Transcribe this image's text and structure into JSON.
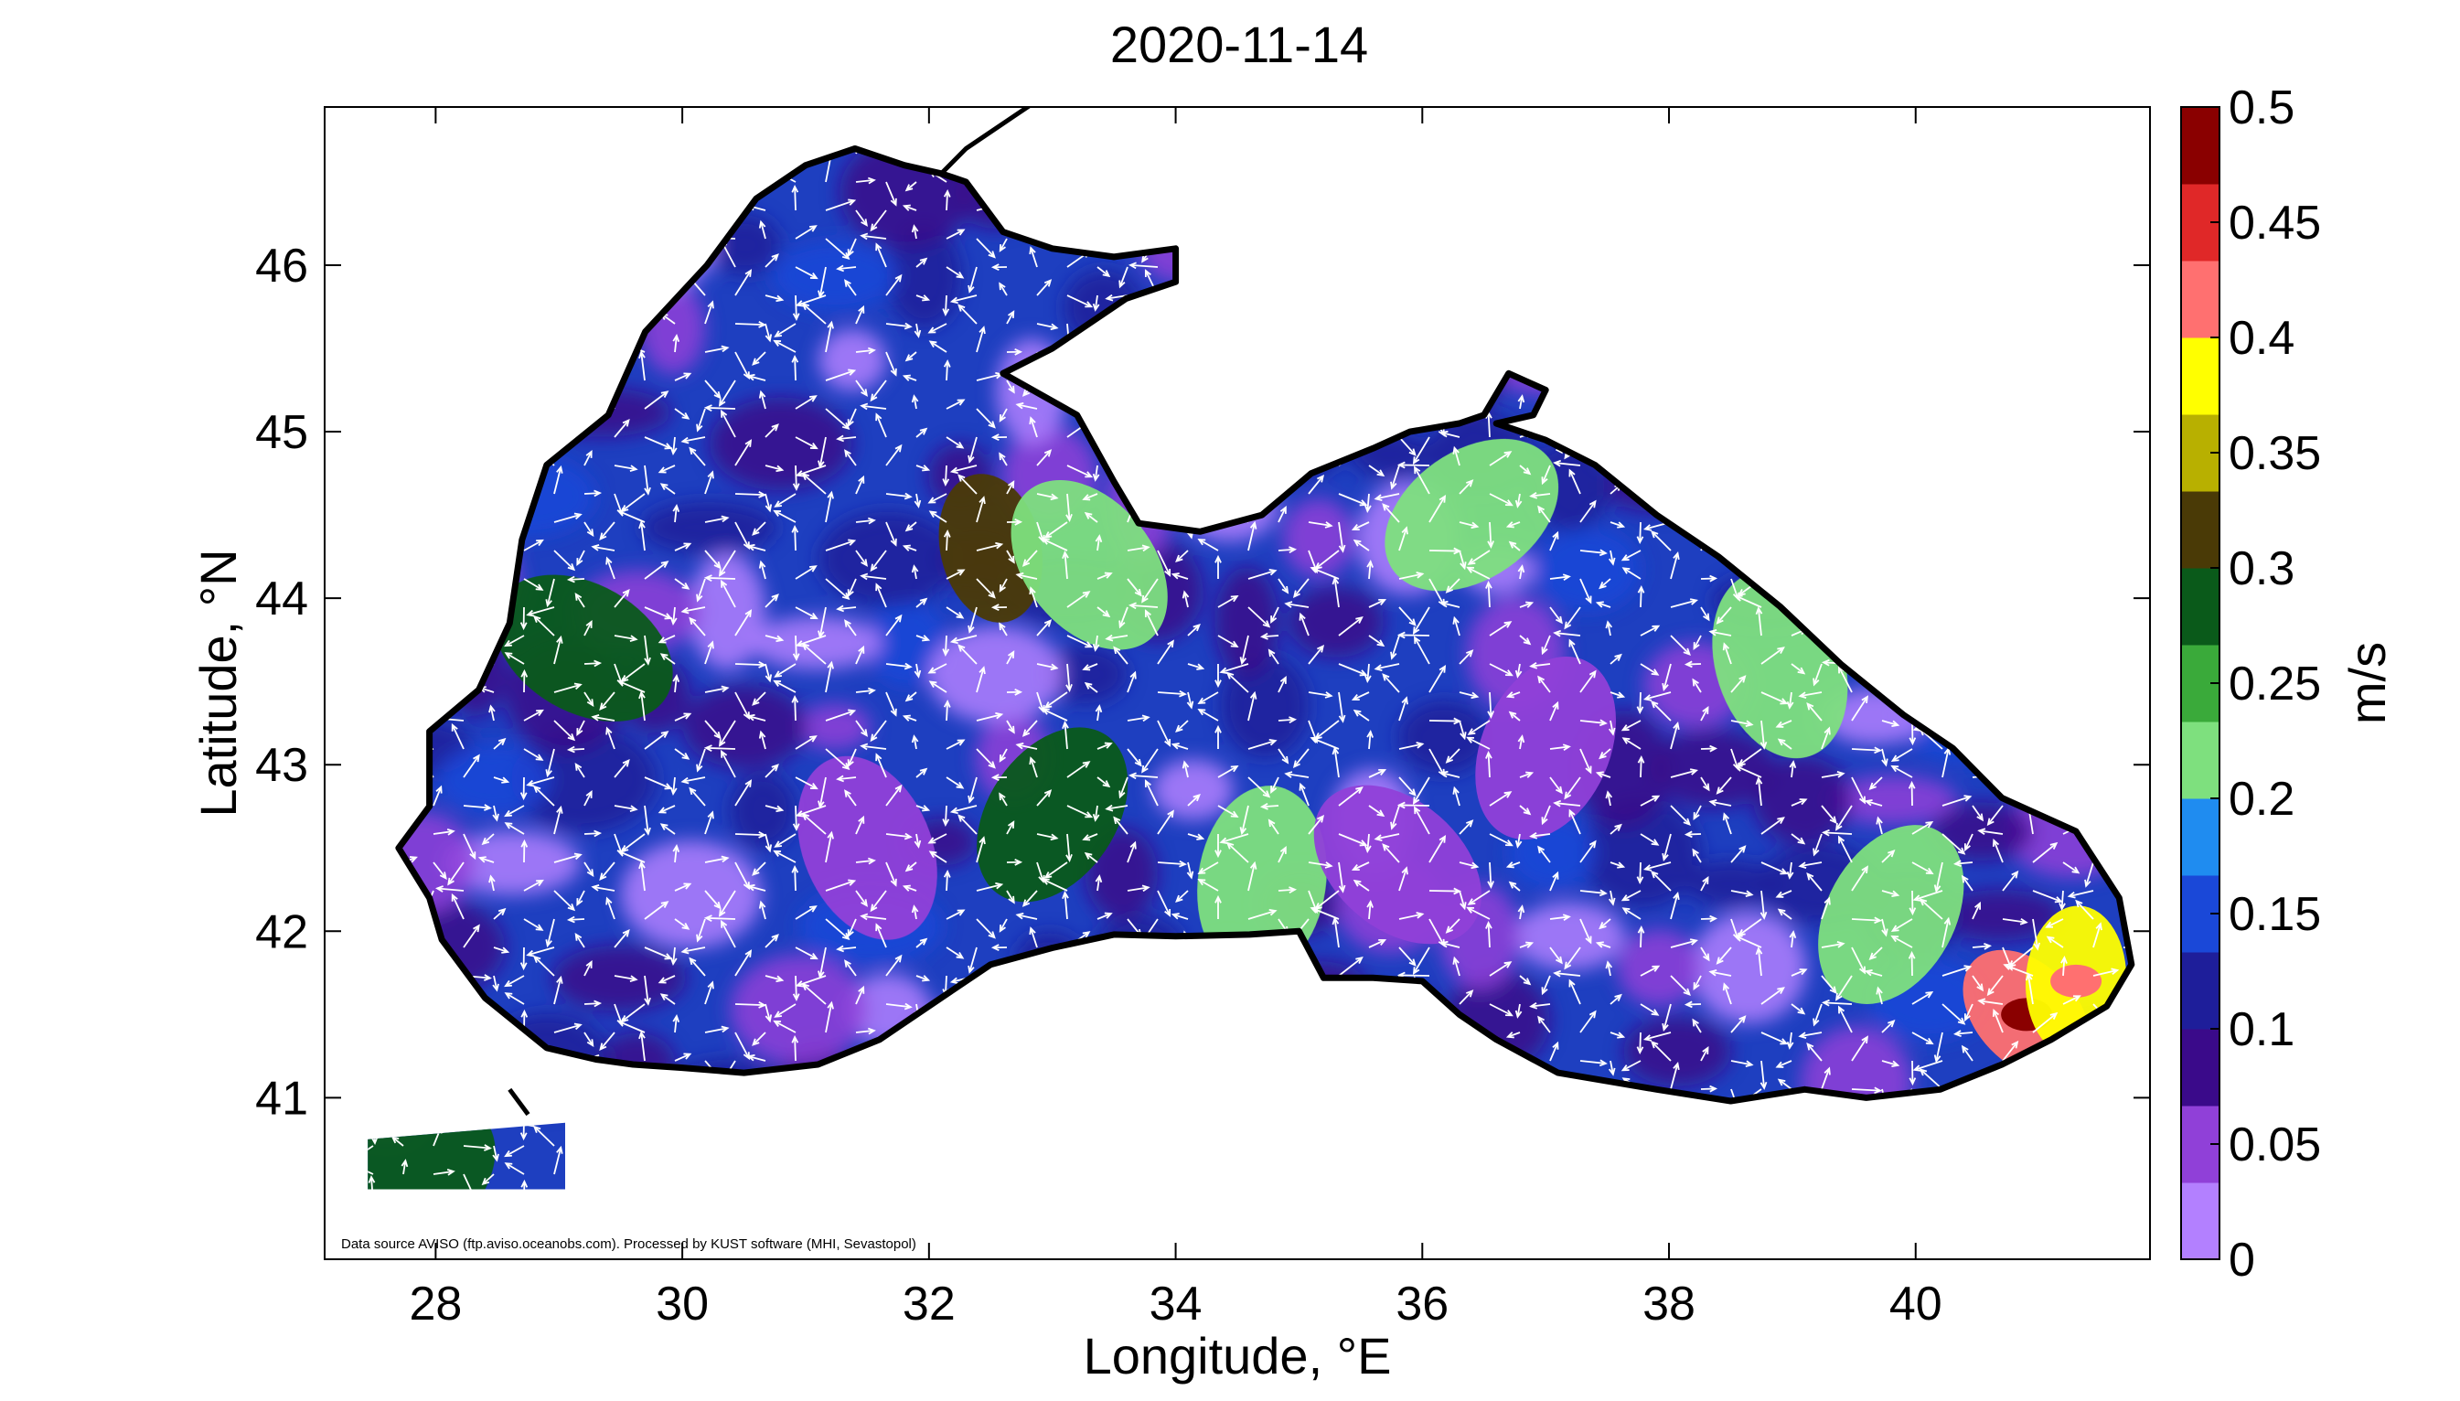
{
  "chart_data": {
    "type": "heatmap",
    "title": "2020-11-14",
    "xlabel": "Longitude, °E",
    "ylabel": "Latitude, °N",
    "xlim": [
      27.1,
      41.9
    ],
    "ylim": [
      40.03,
      46.95
    ],
    "x_ticks": [
      28,
      30,
      32,
      34,
      36,
      38,
      40
    ],
    "x_tick_labels": [
      "28",
      "30",
      "32",
      "34",
      "36",
      "38",
      "40"
    ],
    "y_ticks": [
      41,
      42,
      43,
      44,
      45,
      46
    ],
    "y_tick_labels": [
      "41",
      "42",
      "43",
      "44",
      "45",
      "46"
    ],
    "colorbar": {
      "label": "m/s",
      "range": [
        0,
        0.5
      ],
      "ticks": [
        0,
        0.05,
        0.1,
        0.15,
        0.2,
        0.25,
        0.3,
        0.35,
        0.4,
        0.45,
        0.5
      ],
      "tick_labels": [
        "0",
        "0.05",
        "0.1",
        "0.15",
        "0.2",
        "0.25",
        "0.3",
        "0.35",
        "0.4",
        "0.45",
        "0.5"
      ],
      "colors": [
        "#b380ff",
        "#9040d8",
        "#3a0a8a",
        "#1e1e9a",
        "#1a48d8",
        "#1f8cf0",
        "#7ee07e",
        "#3aaa3a",
        "#0a5a1a",
        "#4a3a06",
        "#b8b000",
        "#ffff00",
        "#ff7070",
        "#e02828",
        "#8a0000"
      ]
    },
    "variable": "sea surface current speed with velocity vectors",
    "field_samples": [
      {
        "lon": 29.2,
        "lat": 43.7,
        "speed": 0.28
      },
      {
        "lon": 32.5,
        "lat": 44.3,
        "speed": 0.32
      },
      {
        "lon": 33.0,
        "lat": 42.7,
        "speed": 0.27
      },
      {
        "lon": 33.3,
        "lat": 44.2,
        "speed": 0.22
      },
      {
        "lon": 34.7,
        "lat": 42.3,
        "speed": 0.21
      },
      {
        "lon": 36.4,
        "lat": 44.5,
        "speed": 0.2
      },
      {
        "lon": 38.9,
        "lat": 43.6,
        "speed": 0.22
      },
      {
        "lon": 39.8,
        "lat": 42.1,
        "speed": 0.21
      },
      {
        "lon": 40.9,
        "lat": 41.5,
        "speed": 0.42
      },
      {
        "lon": 41.3,
        "lat": 41.7,
        "speed": 0.38
      },
      {
        "lon": 27.8,
        "lat": 40.5,
        "speed": 0.28
      },
      {
        "lon": 31.5,
        "lat": 42.5,
        "speed": 0.05
      },
      {
        "lon": 37.0,
        "lat": 43.1,
        "speed": 0.04
      },
      {
        "lon": 35.8,
        "lat": 42.4,
        "speed": 0.06
      }
    ]
  },
  "credit": "Data source AVISO (ftp.aviso.oceanobs.com). Processed by KUST software (MHI, Sevastopol)",
  "colors": {
    "coastline": "#000000",
    "background": "#ffffff",
    "arrows": "#ffffff",
    "base_sea": "#1e3fc0"
  }
}
